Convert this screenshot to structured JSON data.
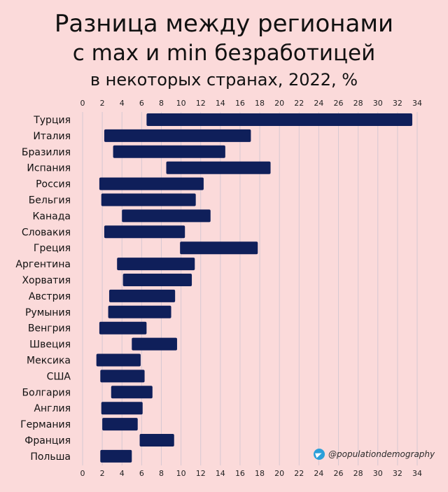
{
  "chart_data": {
    "type": "bar",
    "subtype": "floating-range-horizontal",
    "title": [
      "Разница между регионами",
      "с max и min безработицей",
      "в некоторых странах, 2022, %"
    ],
    "categories": [
      "Турция",
      "Италия",
      "Бразилия",
      "Испания",
      "Россия",
      "Бельгия",
      "Канада",
      "Словакия",
      "Греция",
      "Аргентина",
      "Хорватия",
      "Австрия",
      "Румыния",
      "Венгрия",
      "Швеция",
      "Мексика",
      "США",
      "Болгария",
      "Англия",
      "Германия",
      "Франция",
      "Польша"
    ],
    "ranges": [
      [
        6.5,
        33.5
      ],
      [
        2.2,
        17.1
      ],
      [
        3.1,
        14.5
      ],
      [
        8.5,
        19.1
      ],
      [
        1.7,
        12.3
      ],
      [
        1.9,
        11.5
      ],
      [
        4.0,
        13.0
      ],
      [
        2.2,
        10.4
      ],
      [
        9.9,
        17.8
      ],
      [
        3.5,
        11.4
      ],
      [
        4.1,
        11.1
      ],
      [
        2.7,
        9.4
      ],
      [
        2.6,
        9.0
      ],
      [
        1.7,
        6.5
      ],
      [
        5.0,
        9.6
      ],
      [
        1.4,
        5.9
      ],
      [
        1.8,
        6.3
      ],
      [
        2.9,
        7.1
      ],
      [
        1.9,
        6.1
      ],
      [
        2.0,
        5.6
      ],
      [
        5.8,
        9.3
      ],
      [
        1.8,
        5.0
      ]
    ],
    "xlim": [
      0,
      34
    ],
    "xticks": [
      0,
      2,
      4,
      6,
      8,
      10,
      12,
      14,
      16,
      18,
      20,
      22,
      24,
      26,
      28,
      30,
      32,
      34
    ],
    "grid": true,
    "bar_color": "#0f1f5a",
    "grid_color": "#d6c8d2",
    "background_color": "#fbdada"
  },
  "watermark": {
    "icon": "telegram-icon",
    "text": "@populationdemography"
  }
}
